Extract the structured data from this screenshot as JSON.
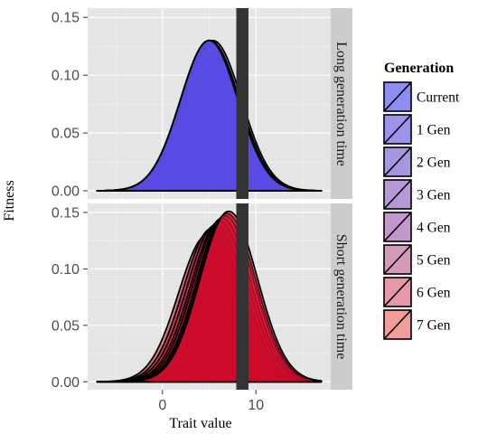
{
  "chart_data": {
    "type": "area",
    "xlabel": "Trait value",
    "ylabel": "Fitness",
    "xlim": [
      -8,
      18
    ],
    "ylim": [
      -0.007,
      0.158
    ],
    "x_ticks": [
      0,
      10
    ],
    "x_tick_labels": [
      "0",
      "10"
    ],
    "y_ticks": [
      0.0,
      0.05,
      0.1,
      0.15
    ],
    "y_tick_labels": [
      "0.00",
      "0.05",
      "0.10",
      "0.15"
    ],
    "optimum_band": {
      "x_from": 7.9,
      "x_to": 9.2,
      "color": "#333333"
    },
    "panels": [
      {
        "strip_label": "Long generation time",
        "series": [
          {
            "name": "Current",
            "mean": 5.0,
            "peak": 0.13
          },
          {
            "name": "1 Gen",
            "mean": 5.4,
            "peak": 0.13
          },
          {
            "name": "2 Gen",
            "mean": 5.2,
            "peak": 0.129
          },
          {
            "name": "3 Gen",
            "mean": 5.1,
            "peak": 0.13
          },
          {
            "name": "4 Gen",
            "mean": 5.0,
            "peak": 0.13
          },
          {
            "name": "5 Gen",
            "mean": 5.0,
            "peak": 0.13
          },
          {
            "name": "6 Gen",
            "mean": 5.0,
            "peak": 0.13
          },
          {
            "name": "7 Gen",
            "mean": 5.0,
            "peak": 0.13
          }
        ]
      },
      {
        "strip_label": "Short generation time",
        "series": [
          {
            "name": "Current",
            "mean": 4.8,
            "peak": 0.13
          },
          {
            "name": "1 Gen",
            "mean": 5.3,
            "peak": 0.136
          },
          {
            "name": "2 Gen",
            "mean": 5.7,
            "peak": 0.139
          },
          {
            "name": "3 Gen",
            "mean": 6.1,
            "peak": 0.142
          },
          {
            "name": "4 Gen",
            "mean": 6.4,
            "peak": 0.145
          },
          {
            "name": "5 Gen",
            "mean": 6.7,
            "peak": 0.147
          },
          {
            "name": "6 Gen",
            "mean": 6.9,
            "peak": 0.149
          },
          {
            "name": "7 Gen",
            "mean": 7.1,
            "peak": 0.151
          }
        ]
      }
    ],
    "legend": {
      "title": "Generation",
      "placement": "right",
      "entries": [
        "Current",
        "1 Gen",
        "2 Gen",
        "3 Gen",
        "4 Gen",
        "5 Gen",
        "6 Gen",
        "7 Gen"
      ]
    },
    "colors": {
      "long_fill": "#5a4be6",
      "short_fill": "#cc0a2a",
      "panel_background": "#e5e5e5",
      "strip_background": "#cccccc",
      "gridline": "#f2f2f2",
      "legend_fills": [
        "#8c8cf2",
        "#9b93ec",
        "#a696e0",
        "#b598d6",
        "#c397cc",
        "#d59ab8",
        "#e599a8",
        "#f29c9c"
      ]
    },
    "grid": true
  }
}
